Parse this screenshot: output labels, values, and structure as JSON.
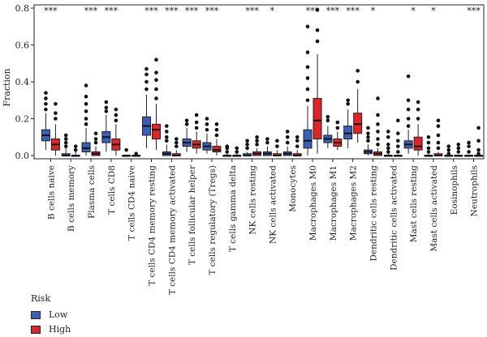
{
  "chart_data": {
    "type": "box",
    "ylabel": "Fraction",
    "ylim": [
      0,
      0.8
    ],
    "yticks": [
      "0.0",
      "0.2",
      "0.4",
      "0.6",
      "0.8"
    ],
    "legend": {
      "title": "Risk",
      "position": "bottom-left"
    },
    "series": [
      {
        "name": "Low",
        "color": "#3b5fb8"
      },
      {
        "name": "High",
        "color": "#e0242a"
      }
    ],
    "categories": [
      "B cells naive",
      "B cells memory",
      "Plasma cells",
      "T cells CD8",
      "T cells CD4 naive",
      "T cells CD4 memory resting",
      "T cells CD4 memory activated",
      "T cells follicular helper",
      "T cells regulatory (Tregs)",
      "T cells gamma delta",
      "NK cells resting",
      "NK cells activated",
      "Monocytes",
      "Macrophages M0",
      "Macrophages M1",
      "Macrophages M2",
      "Dendritic cells resting",
      "Dendritic cells activated",
      "Mast cells resting",
      "Mast cells activated",
      "Eosinophils",
      "Neutrophils"
    ],
    "significance": [
      "***",
      "",
      "***",
      "***",
      "",
      "***",
      "***",
      "***",
      "***",
      "",
      "***",
      "*",
      "",
      "***",
      "***",
      "***",
      "*",
      "",
      "*",
      "*",
      "",
      "***"
    ],
    "boxes": {
      "Low": [
        [
          0.03,
          0.08,
          0.11,
          0.14,
          0.23
        ],
        [
          0.0,
          0.0,
          0.0,
          0.01,
          0.04
        ],
        [
          0.0,
          0.02,
          0.04,
          0.07,
          0.15
        ],
        [
          0.02,
          0.07,
          0.1,
          0.13,
          0.22
        ],
        [
          0.0,
          0.0,
          0.0,
          0.0,
          0.0
        ],
        [
          0.04,
          0.11,
          0.16,
          0.21,
          0.33
        ],
        [
          0.0,
          0.0,
          0.01,
          0.02,
          0.06
        ],
        [
          0.02,
          0.05,
          0.07,
          0.09,
          0.15
        ],
        [
          0.01,
          0.03,
          0.05,
          0.07,
          0.12
        ],
        [
          0.0,
          0.0,
          0.0,
          0.0,
          0.01
        ],
        [
          0.0,
          0.0,
          0.0,
          0.01,
          0.02
        ],
        [
          0.0,
          0.0,
          0.01,
          0.02,
          0.05
        ],
        [
          0.0,
          0.0,
          0.01,
          0.02,
          0.05
        ],
        [
          0.0,
          0.04,
          0.08,
          0.14,
          0.27
        ],
        [
          0.04,
          0.07,
          0.09,
          0.11,
          0.16
        ],
        [
          0.04,
          0.09,
          0.12,
          0.16,
          0.25
        ],
        [
          0.0,
          0.01,
          0.02,
          0.03,
          0.06
        ],
        [
          0.0,
          0.0,
          0.0,
          0.0,
          0.01
        ],
        [
          0.01,
          0.04,
          0.06,
          0.08,
          0.14
        ],
        [
          0.0,
          0.0,
          0.0,
          0.0,
          0.01
        ],
        [
          0.0,
          0.0,
          0.0,
          0.0,
          0.0
        ],
        [
          0.0,
          0.0,
          0.0,
          0.0,
          0.0
        ]
      ],
      "High": [
        [
          0.0,
          0.03,
          0.06,
          0.09,
          0.17
        ],
        [
          0.0,
          0.0,
          0.0,
          0.0,
          0.02
        ],
        [
          0.0,
          0.0,
          0.01,
          0.02,
          0.05
        ],
        [
          0.0,
          0.03,
          0.06,
          0.09,
          0.17
        ],
        [
          0.0,
          0.0,
          0.0,
          0.0,
          0.0
        ],
        [
          0.03,
          0.09,
          0.14,
          0.17,
          0.28
        ],
        [
          0.0,
          0.0,
          0.0,
          0.01,
          0.03
        ],
        [
          0.01,
          0.04,
          0.06,
          0.08,
          0.13
        ],
        [
          0.0,
          0.02,
          0.03,
          0.05,
          0.09
        ],
        [
          0.0,
          0.0,
          0.0,
          0.0,
          0.01
        ],
        [
          0.0,
          0.0,
          0.01,
          0.02,
          0.04
        ],
        [
          0.0,
          0.0,
          0.0,
          0.01,
          0.03
        ],
        [
          0.0,
          0.0,
          0.0,
          0.01,
          0.03
        ],
        [
          0.01,
          0.09,
          0.19,
          0.31,
          0.55
        ],
        [
          0.03,
          0.05,
          0.07,
          0.09,
          0.13
        ],
        [
          0.07,
          0.12,
          0.17,
          0.23,
          0.36
        ],
        [
          0.0,
          0.0,
          0.01,
          0.02,
          0.04
        ],
        [
          0.0,
          0.0,
          0.0,
          0.0,
          0.0
        ],
        [
          0.0,
          0.03,
          0.05,
          0.1,
          0.17
        ],
        [
          0.0,
          0.0,
          0.0,
          0.01,
          0.02
        ],
        [
          0.0,
          0.0,
          0.0,
          0.0,
          0.0
        ],
        [
          0.0,
          0.0,
          0.0,
          0.0,
          0.0
        ]
      ]
    },
    "outliers": {
      "Low": [
        [
          0.25,
          0.28,
          0.31,
          0.34
        ],
        [
          0.05,
          0.07,
          0.09,
          0.11
        ],
        [
          0.17,
          0.2,
          0.24,
          0.28,
          0.32,
          0.38
        ],
        [
          0.24,
          0.26,
          0.29
        ],
        [
          0.03
        ],
        [
          0.36,
          0.4,
          0.44,
          0.47
        ],
        [
          0.08,
          0.1,
          0.13,
          0.16
        ],
        [
          0.17,
          0.19
        ],
        [
          0.14,
          0.17,
          0.2
        ],
        [
          0.02,
          0.04,
          0.05
        ],
        [
          0.04,
          0.06,
          0.08
        ],
        [
          0.07,
          0.09
        ],
        [
          0.07,
          0.1,
          0.13
        ],
        [
          0.3,
          0.36,
          0.42,
          0.48,
          0.56,
          0.7
        ],
        [
          0.19,
          0.21
        ],
        [
          0.28,
          0.3
        ],
        [
          0.08,
          0.1,
          0.12,
          0.15
        ],
        [
          0.02,
          0.04,
          0.06,
          0.1,
          0.13
        ],
        [
          0.16,
          0.2,
          0.25,
          0.3,
          0.43
        ],
        [
          0.02,
          0.04,
          0.07,
          0.1
        ],
        [
          0.01,
          0.03,
          0.05
        ],
        [
          0.02,
          0.05,
          0.07
        ]
      ],
      "High": [
        [
          0.2,
          0.23,
          0.28
        ],
        [
          0.03,
          0.05
        ],
        [
          0.07,
          0.09,
          0.12
        ],
        [
          0.19,
          0.22,
          0.25
        ],
        [
          0.01
        ],
        [
          0.31,
          0.36,
          0.41,
          0.45,
          0.52
        ],
        [
          0.05,
          0.07,
          0.09
        ],
        [
          0.15,
          0.18,
          0.22
        ],
        [
          0.11,
          0.14,
          0.17
        ],
        [
          0.02,
          0.04
        ],
        [
          0.06,
          0.08,
          0.1
        ],
        [
          0.05,
          0.08
        ],
        [
          0.05,
          0.08,
          0.1
        ],
        [
          0.62,
          0.68,
          0.79
        ],
        [
          0.15,
          0.18
        ],
        [
          0.4,
          0.46
        ],
        [
          0.06,
          0.09,
          0.13,
          0.17,
          0.22,
          0.31
        ],
        [
          0.02,
          0.05,
          0.08,
          0.12,
          0.19
        ],
        [
          0.2,
          0.25,
          0.29
        ],
        [
          0.04,
          0.07,
          0.11,
          0.16,
          0.19
        ],
        [
          0.02,
          0.04,
          0.06
        ],
        [
          0.01,
          0.03,
          0.08,
          0.15
        ]
      ]
    }
  }
}
